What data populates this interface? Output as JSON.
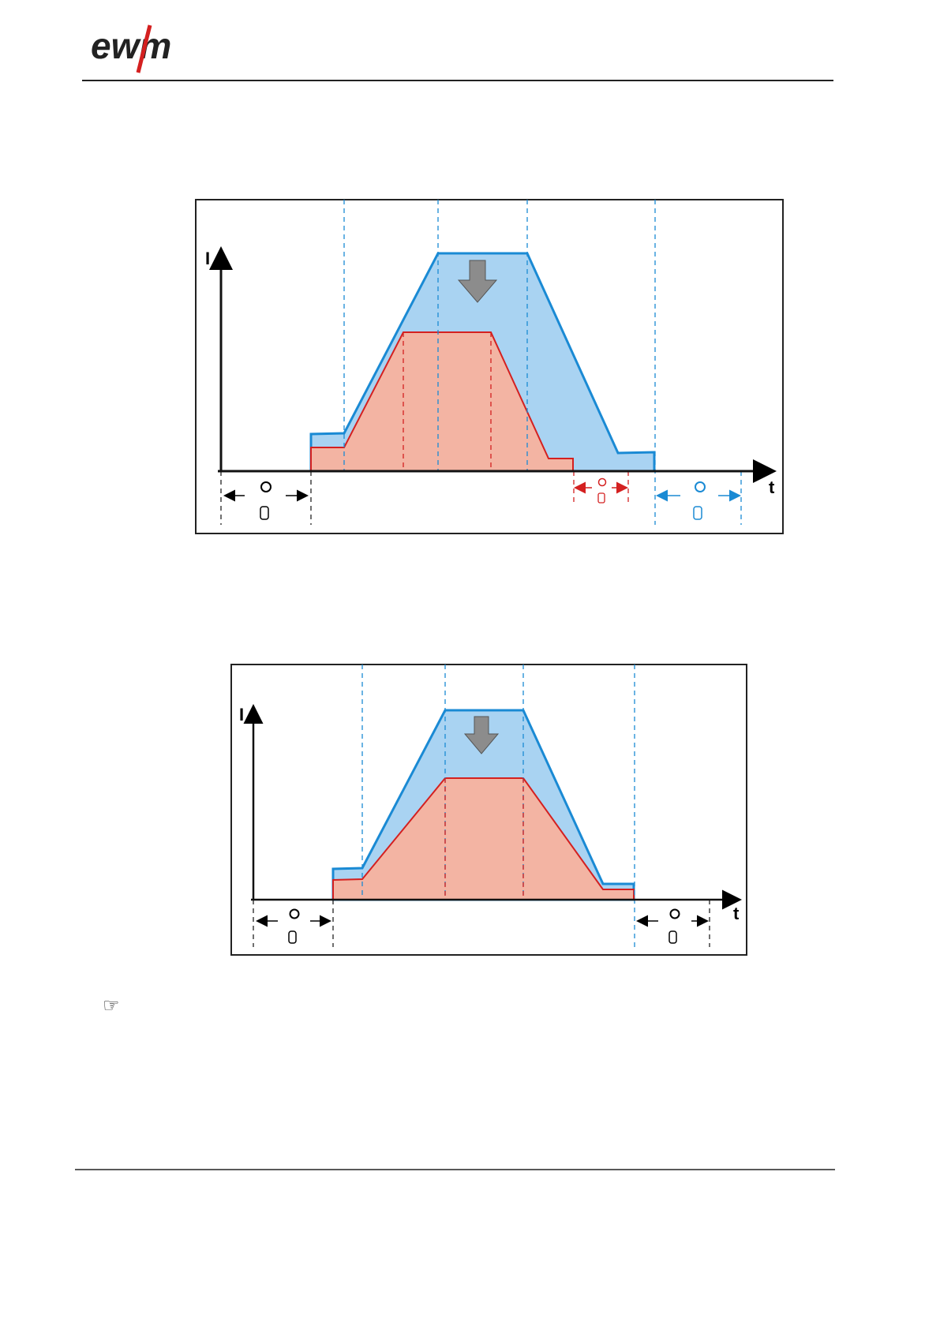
{
  "header": {
    "logo": "ewm"
  },
  "diagrams": [
    {
      "y_label": "I",
      "x_label": "t"
    },
    {
      "y_label": "I",
      "x_label": "t"
    }
  ],
  "note": {
    "icon": "☞"
  }
}
